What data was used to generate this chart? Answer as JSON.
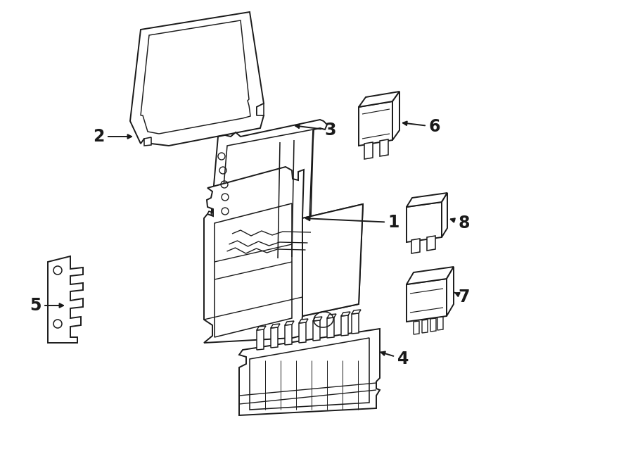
{
  "bg_color": "#ffffff",
  "line_color": "#1a1a1a",
  "lw": 1.4,
  "fig_width": 9.0,
  "fig_height": 6.62
}
